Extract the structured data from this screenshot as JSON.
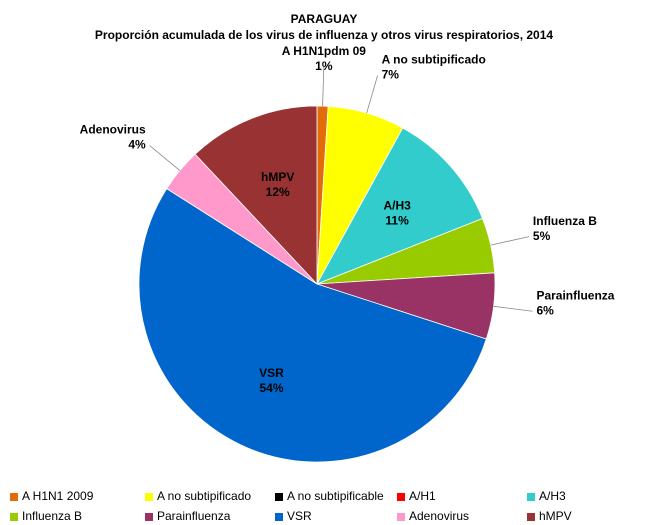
{
  "chart_data": {
    "type": "pie",
    "title": "PARAGUAY",
    "subtitle": "Proporción acumulada de los virus de influenza y otros virus respiratorios, 2014",
    "categories": [
      "A H1N1 2009",
      "A no subtipificado",
      "A no subtipificable",
      "A/H1",
      "A/H3",
      "Influenza  B",
      "Parainfluenza",
      "VSR",
      "Adenovirus",
      "hMPV"
    ],
    "values": [
      1,
      7,
      0,
      0,
      11,
      5,
      6,
      54,
      4,
      12
    ],
    "value_labels": [
      "1%",
      "7%",
      null,
      null,
      "11%",
      "5%",
      "6%",
      "54%",
      "4%",
      "12%"
    ],
    "slice_labels": [
      "A H1N1pdm 09",
      "A no subtipificado",
      null,
      null,
      "A/H3",
      "Influenza  B",
      "Parainfluenza",
      "VSR",
      "Adenovirus",
      "hMPV"
    ],
    "colors": [
      "#e36c0a",
      "#ffff00",
      "#000000",
      "#ff0000",
      "#33cccc",
      "#99cc00",
      "#993366",
      "#0066cc",
      "#ff99cc",
      "#993333"
    ],
    "legend": "bottom"
  }
}
